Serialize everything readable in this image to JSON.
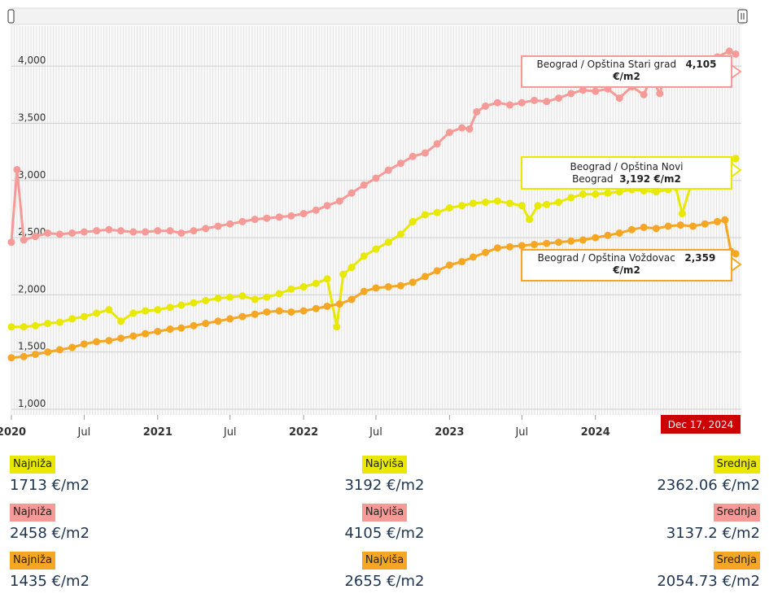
{
  "chart_data": {
    "type": "line",
    "x_axis": {
      "range": [
        "2020-01-01",
        "2024-12-31"
      ],
      "tick_labels": [
        {
          "date": "2020-01-01",
          "label": "2020",
          "bold": true
        },
        {
          "date": "2020-07-01",
          "label": "Jul",
          "bold": false
        },
        {
          "date": "2021-01-01",
          "label": "2021",
          "bold": true
        },
        {
          "date": "2021-07-01",
          "label": "Jul",
          "bold": false
        },
        {
          "date": "2022-01-01",
          "label": "2022",
          "bold": true
        },
        {
          "date": "2022-07-01",
          "label": "Jul",
          "bold": false
        },
        {
          "date": "2023-01-01",
          "label": "2023",
          "bold": true
        },
        {
          "date": "2023-07-01",
          "label": "Jul",
          "bold": false
        },
        {
          "date": "2024-01-01",
          "label": "2024",
          "bold": true
        }
      ],
      "crosshair_label": "Dec 17, 2024"
    },
    "y_axis": {
      "range": [
        950,
        4350
      ],
      "ticks": [
        1000,
        1500,
        2000,
        2500,
        3000,
        3500,
        4000
      ],
      "tick_labels": [
        "1,000",
        "1,500",
        "2,000",
        "2,500",
        "3,000",
        "3,500",
        "4,000"
      ]
    },
    "grid": true,
    "series": [
      {
        "name": "Beograd / Opština Stari grad",
        "color": "#f59a96",
        "points": [
          [
            "2020-01-01",
            2460
          ],
          [
            "2020-01-15",
            3095
          ],
          [
            "2020-02-01",
            2480
          ],
          [
            "2020-03-01",
            2510
          ],
          [
            "2020-04-01",
            2540
          ],
          [
            "2020-05-01",
            2530
          ],
          [
            "2020-06-01",
            2540
          ],
          [
            "2020-07-01",
            2550
          ],
          [
            "2020-08-01",
            2560
          ],
          [
            "2020-09-01",
            2570
          ],
          [
            "2020-10-01",
            2560
          ],
          [
            "2020-11-01",
            2550
          ],
          [
            "2020-12-01",
            2550
          ],
          [
            "2021-01-01",
            2560
          ],
          [
            "2021-02-01",
            2560
          ],
          [
            "2021-03-01",
            2540
          ],
          [
            "2021-04-01",
            2560
          ],
          [
            "2021-05-01",
            2580
          ],
          [
            "2021-06-01",
            2600
          ],
          [
            "2021-07-01",
            2620
          ],
          [
            "2021-08-01",
            2640
          ],
          [
            "2021-09-01",
            2660
          ],
          [
            "2021-10-01",
            2670
          ],
          [
            "2021-11-01",
            2680
          ],
          [
            "2021-12-01",
            2690
          ],
          [
            "2022-01-01",
            2710
          ],
          [
            "2022-02-01",
            2740
          ],
          [
            "2022-03-01",
            2780
          ],
          [
            "2022-04-01",
            2820
          ],
          [
            "2022-05-01",
            2890
          ],
          [
            "2022-06-01",
            2960
          ],
          [
            "2022-07-01",
            3020
          ],
          [
            "2022-08-01",
            3090
          ],
          [
            "2022-09-01",
            3150
          ],
          [
            "2022-10-01",
            3210
          ],
          [
            "2022-11-01",
            3240
          ],
          [
            "2022-12-01",
            3320
          ],
          [
            "2023-01-01",
            3420
          ],
          [
            "2023-02-01",
            3460
          ],
          [
            "2023-02-20",
            3450
          ],
          [
            "2023-03-10",
            3600
          ],
          [
            "2023-04-01",
            3650
          ],
          [
            "2023-05-01",
            3680
          ],
          [
            "2023-06-01",
            3660
          ],
          [
            "2023-07-01",
            3680
          ],
          [
            "2023-08-01",
            3700
          ],
          [
            "2023-09-01",
            3690
          ],
          [
            "2023-10-01",
            3720
          ],
          [
            "2023-11-01",
            3760
          ],
          [
            "2023-12-01",
            3790
          ],
          [
            "2024-01-01",
            3780
          ],
          [
            "2024-02-01",
            3800
          ],
          [
            "2024-03-01",
            3720
          ],
          [
            "2024-04-01",
            3820
          ],
          [
            "2024-05-01",
            3750
          ],
          [
            "2024-05-20",
            3900
          ],
          [
            "2024-06-10",
            3760
          ],
          [
            "2024-07-01",
            4020
          ],
          [
            "2024-08-01",
            4000
          ],
          [
            "2024-09-01",
            4010
          ],
          [
            "2024-10-01",
            4050
          ],
          [
            "2024-11-01",
            4080
          ],
          [
            "2024-12-01",
            4130
          ],
          [
            "2024-12-17",
            4105
          ]
        ]
      },
      {
        "name": "Beograd / Opština Novi Beograd",
        "color": "#e8e800",
        "points": [
          [
            "2020-01-01",
            1720
          ],
          [
            "2020-02-01",
            1720
          ],
          [
            "2020-03-01",
            1730
          ],
          [
            "2020-04-01",
            1750
          ],
          [
            "2020-05-01",
            1760
          ],
          [
            "2020-06-01",
            1790
          ],
          [
            "2020-07-01",
            1810
          ],
          [
            "2020-08-01",
            1840
          ],
          [
            "2020-09-01",
            1870
          ],
          [
            "2020-10-01",
            1770
          ],
          [
            "2020-11-01",
            1840
          ],
          [
            "2020-12-01",
            1860
          ],
          [
            "2021-01-01",
            1870
          ],
          [
            "2021-02-01",
            1890
          ],
          [
            "2021-03-01",
            1910
          ],
          [
            "2021-04-01",
            1930
          ],
          [
            "2021-05-01",
            1950
          ],
          [
            "2021-06-01",
            1970
          ],
          [
            "2021-07-01",
            1980
          ],
          [
            "2021-08-01",
            1990
          ],
          [
            "2021-09-01",
            1960
          ],
          [
            "2021-10-01",
            1980
          ],
          [
            "2021-11-01",
            2010
          ],
          [
            "2021-12-01",
            2050
          ],
          [
            "2022-01-01",
            2070
          ],
          [
            "2022-02-01",
            2100
          ],
          [
            "2022-03-01",
            2140
          ],
          [
            "2022-03-25",
            1720
          ],
          [
            "2022-04-10",
            2180
          ],
          [
            "2022-05-01",
            2240
          ],
          [
            "2022-06-01",
            2340
          ],
          [
            "2022-07-01",
            2400
          ],
          [
            "2022-08-01",
            2460
          ],
          [
            "2022-09-01",
            2530
          ],
          [
            "2022-10-01",
            2640
          ],
          [
            "2022-11-01",
            2700
          ],
          [
            "2022-12-01",
            2720
          ],
          [
            "2023-01-01",
            2760
          ],
          [
            "2023-02-01",
            2780
          ],
          [
            "2023-03-01",
            2800
          ],
          [
            "2023-04-01",
            2810
          ],
          [
            "2023-05-01",
            2820
          ],
          [
            "2023-06-01",
            2800
          ],
          [
            "2023-07-01",
            2780
          ],
          [
            "2023-07-20",
            2660
          ],
          [
            "2023-08-10",
            2780
          ],
          [
            "2023-09-01",
            2790
          ],
          [
            "2023-10-01",
            2810
          ],
          [
            "2023-11-01",
            2850
          ],
          [
            "2023-12-01",
            2880
          ],
          [
            "2024-01-01",
            2880
          ],
          [
            "2024-02-01",
            2890
          ],
          [
            "2024-03-01",
            2900
          ],
          [
            "2024-04-01",
            2920
          ],
          [
            "2024-05-01",
            2910
          ],
          [
            "2024-06-01",
            2900
          ],
          [
            "2024-07-01",
            2920
          ],
          [
            "2024-07-20",
            2940
          ],
          [
            "2024-08-05",
            2710
          ],
          [
            "2024-09-01",
            3020
          ],
          [
            "2024-10-01",
            3050
          ],
          [
            "2024-11-01",
            3100
          ],
          [
            "2024-12-01",
            3160
          ],
          [
            "2024-12-17",
            3192
          ]
        ]
      },
      {
        "name": "Beograd / Opština Voždovac",
        "color": "#f5a623",
        "points": [
          [
            "2020-01-01",
            1450
          ],
          [
            "2020-02-01",
            1460
          ],
          [
            "2020-03-01",
            1480
          ],
          [
            "2020-04-01",
            1500
          ],
          [
            "2020-05-01",
            1520
          ],
          [
            "2020-06-01",
            1540
          ],
          [
            "2020-07-01",
            1570
          ],
          [
            "2020-08-01",
            1590
          ],
          [
            "2020-09-01",
            1600
          ],
          [
            "2020-10-01",
            1620
          ],
          [
            "2020-11-01",
            1640
          ],
          [
            "2020-12-01",
            1660
          ],
          [
            "2021-01-01",
            1680
          ],
          [
            "2021-02-01",
            1700
          ],
          [
            "2021-03-01",
            1710
          ],
          [
            "2021-04-01",
            1730
          ],
          [
            "2021-05-01",
            1750
          ],
          [
            "2021-06-01",
            1770
          ],
          [
            "2021-07-01",
            1790
          ],
          [
            "2021-08-01",
            1810
          ],
          [
            "2021-09-01",
            1830
          ],
          [
            "2021-10-01",
            1850
          ],
          [
            "2021-11-01",
            1860
          ],
          [
            "2021-12-01",
            1850
          ],
          [
            "2022-01-01",
            1860
          ],
          [
            "2022-02-01",
            1880
          ],
          [
            "2022-03-01",
            1900
          ],
          [
            "2022-04-01",
            1920
          ],
          [
            "2022-05-01",
            1960
          ],
          [
            "2022-06-01",
            2030
          ],
          [
            "2022-07-01",
            2060
          ],
          [
            "2022-08-01",
            2070
          ],
          [
            "2022-09-01",
            2080
          ],
          [
            "2022-10-01",
            2110
          ],
          [
            "2022-11-01",
            2160
          ],
          [
            "2022-12-01",
            2210
          ],
          [
            "2023-01-01",
            2260
          ],
          [
            "2023-02-01",
            2290
          ],
          [
            "2023-03-01",
            2330
          ],
          [
            "2023-04-01",
            2370
          ],
          [
            "2023-05-01",
            2410
          ],
          [
            "2023-06-01",
            2420
          ],
          [
            "2023-07-01",
            2430
          ],
          [
            "2023-08-01",
            2440
          ],
          [
            "2023-09-01",
            2450
          ],
          [
            "2023-10-01",
            2460
          ],
          [
            "2023-11-01",
            2470
          ],
          [
            "2023-12-01",
            2480
          ],
          [
            "2024-01-01",
            2500
          ],
          [
            "2024-02-01",
            2520
          ],
          [
            "2024-03-01",
            2540
          ],
          [
            "2024-04-01",
            2570
          ],
          [
            "2024-05-01",
            2590
          ],
          [
            "2024-06-01",
            2580
          ],
          [
            "2024-07-01",
            2600
          ],
          [
            "2024-08-01",
            2610
          ],
          [
            "2024-09-01",
            2600
          ],
          [
            "2024-10-01",
            2620
          ],
          [
            "2024-11-01",
            2640
          ],
          [
            "2024-11-20",
            2655
          ],
          [
            "2024-12-05",
            2380
          ],
          [
            "2024-12-17",
            2359
          ]
        ]
      }
    ],
    "tooltips": [
      {
        "series": "Beograd / Opština Stari grad",
        "name_text": "Beograd / Opština Stari grad",
        "value_text": "4,105",
        "unit_text": "€/m2",
        "border_color": "#f59a96"
      },
      {
        "series": "Beograd / Opština Novi Beograd",
        "name_text": "Beograd / Opština Novi Beograd",
        "value_text": "3,192 €/m2",
        "unit_text": "",
        "border_color": "#e8e800"
      },
      {
        "series": "Beograd / Opština Voždovac",
        "name_text": "Beograd / Opština Voždovac",
        "value_text": "2,359",
        "unit_text": "€/m2",
        "border_color": "#f5a623"
      }
    ]
  },
  "stats": [
    {
      "color": "#e8e800",
      "min_label": "Najniža",
      "min_value": "1713 €/m2",
      "max_label": "Najviša",
      "max_value": "3192 €/m2",
      "avg_label": "Srednja",
      "avg_value": "2362.06 €/m2"
    },
    {
      "color": "#f59a96",
      "min_label": "Najniža",
      "min_value": "2458 €/m2",
      "max_label": "Najviša",
      "max_value": "4105 €/m2",
      "avg_label": "Srednja",
      "avg_value": "3137.2 €/m2"
    },
    {
      "color": "#f5a623",
      "min_label": "Najniža",
      "min_value": "1435 €/m2",
      "max_label": "Najviša",
      "max_value": "2655 €/m2",
      "avg_label": "Srednja",
      "avg_value": "2054.73 €/m2"
    }
  ]
}
